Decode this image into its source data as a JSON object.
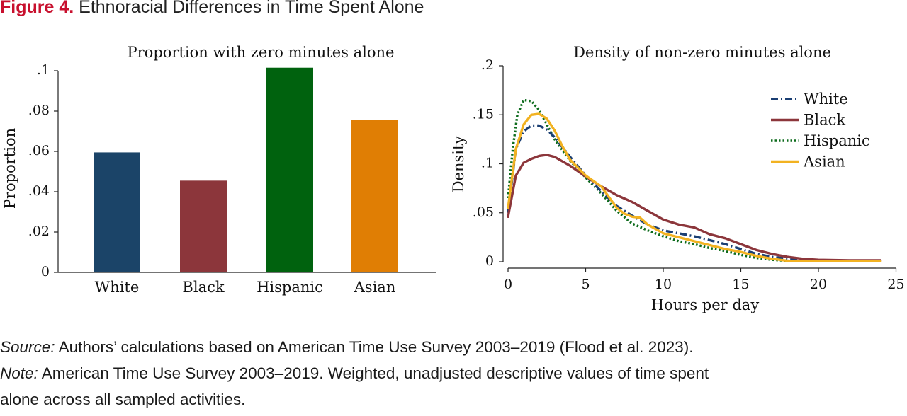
{
  "figure": {
    "label": "Figure 4.",
    "title": "Ethnoracial Differences in Time Spent Alone",
    "source_label": "Source:",
    "source_text": "Authors’ calculations based on American Time Use Survey 2003–2019 (Flood et al. 2023).",
    "note_label": "Note:",
    "note_line1": "American Time Use Survey 2003–2019. Weighted, unadjusted descriptive values of time spent",
    "note_line2": "alone across all sampled activities."
  },
  "chart_data": [
    {
      "type": "bar",
      "title": "Proportion with zero minutes alone",
      "xlabel": "",
      "ylabel": "Proportion",
      "categories": [
        "White",
        "Black",
        "Hispanic",
        "Asian"
      ],
      "values": [
        0.0595,
        0.0455,
        0.1015,
        0.0757
      ],
      "colors": [
        "#1b4468",
        "#8c363b",
        "#00620e",
        "#e07e04"
      ],
      "ylim": [
        0,
        0.1
      ],
      "yticks": [
        0,
        0.02,
        0.04,
        0.06,
        0.08,
        0.1
      ],
      "ytick_labels": [
        "0",
        ".02",
        ".04",
        ".06",
        ".08",
        ".1"
      ],
      "grid": false
    },
    {
      "type": "line",
      "title": "Density of non-zero minutes alone",
      "xlabel": "Hours per day",
      "ylabel": "Density",
      "xlim": [
        0,
        25
      ],
      "ylim": [
        0,
        0.2
      ],
      "xticks": [
        0,
        5,
        10,
        15,
        20,
        25
      ],
      "xtick_labels": [
        "0",
        "5",
        "10",
        "15",
        "20",
        "25"
      ],
      "yticks": [
        0,
        0.05,
        0.1,
        0.15,
        0.2
      ],
      "ytick_labels": [
        "0",
        ".05",
        ".1",
        ".15",
        ".2"
      ],
      "grid": false,
      "legend_position": "top-right",
      "series": [
        {
          "name": "White",
          "color": "#1b3f73",
          "dash": "dashdot",
          "x": [
            0,
            0.5,
            1,
            1.5,
            2,
            2.5,
            3,
            4,
            5,
            6,
            7,
            8,
            9,
            10,
            11,
            12,
            13,
            14,
            15,
            16,
            17,
            18,
            20,
            22,
            24
          ],
          "y": [
            0.05,
            0.115,
            0.133,
            0.139,
            0.139,
            0.135,
            0.127,
            0.107,
            0.088,
            0.072,
            0.057,
            0.047,
            0.038,
            0.032,
            0.029,
            0.026,
            0.022,
            0.018,
            0.013,
            0.008,
            0.005,
            0.003,
            0.0015,
            0.001,
            0.001
          ]
        },
        {
          "name": "Black",
          "color": "#8c363b",
          "dash": "solid",
          "x": [
            0,
            0.5,
            1,
            1.5,
            2,
            2.5,
            3,
            4,
            5,
            6,
            7,
            8,
            9,
            10,
            11,
            12,
            13,
            14,
            15,
            16,
            17,
            18,
            19,
            20,
            22,
            24
          ],
          "y": [
            0.046,
            0.088,
            0.101,
            0.105,
            0.108,
            0.109,
            0.107,
            0.098,
            0.087,
            0.077,
            0.068,
            0.061,
            0.052,
            0.043,
            0.038,
            0.035,
            0.028,
            0.024,
            0.018,
            0.012,
            0.008,
            0.005,
            0.003,
            0.002,
            0.0015,
            0.0015
          ]
        },
        {
          "name": "Hispanic",
          "color": "#0d6b1c",
          "dash": "dotted",
          "x": [
            0,
            0.3,
            0.6,
            1,
            1.5,
            2,
            2.5,
            3,
            4,
            5,
            6,
            7,
            8,
            9,
            10,
            11,
            12,
            13,
            14,
            15,
            16,
            17,
            18,
            20,
            22,
            24
          ],
          "y": [
            0.065,
            0.115,
            0.15,
            0.165,
            0.164,
            0.155,
            0.14,
            0.125,
            0.103,
            0.086,
            0.07,
            0.052,
            0.039,
            0.032,
            0.026,
            0.021,
            0.018,
            0.014,
            0.011,
            0.007,
            0.004,
            0.002,
            0.001,
            0.0005,
            0.0005,
            0.0005
          ]
        },
        {
          "name": "Asian",
          "color": "#f2b221",
          "dash": "solid",
          "x": [
            0,
            0.5,
            1,
            1.5,
            2,
            2.5,
            3,
            3.5,
            4,
            5,
            6,
            7,
            7.5,
            8,
            8.5,
            9,
            10,
            11,
            12,
            13,
            14,
            15,
            16,
            17,
            18,
            20,
            22,
            24
          ],
          "y": [
            0.055,
            0.115,
            0.14,
            0.15,
            0.151,
            0.146,
            0.134,
            0.118,
            0.104,
            0.088,
            0.077,
            0.055,
            0.049,
            0.046,
            0.045,
            0.038,
            0.029,
            0.025,
            0.021,
            0.017,
            0.013,
            0.01,
            0.006,
            0.003,
            0.001,
            0.0005,
            0.0005,
            0.0005
          ]
        }
      ]
    }
  ]
}
